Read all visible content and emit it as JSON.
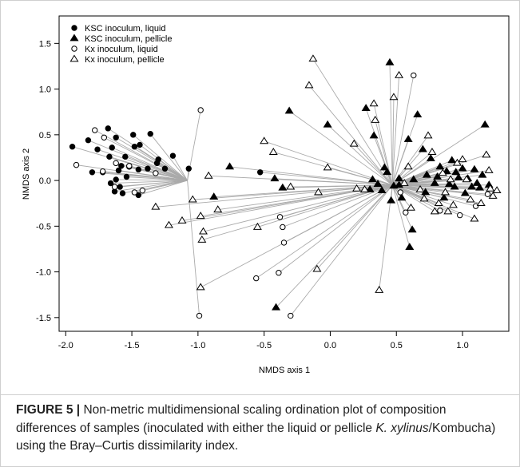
{
  "caption": {
    "label": "FIGURE 5 |",
    "text_1": "Non-metric multidimensional scaling ordination plot of composition differences of samples (inoculated with either the liquid or pellicle",
    "taxon": "K. xylinus",
    "text_2": "/Kombucha) using the Bray–Curtis dissimilarity index."
  },
  "chart_data": {
    "type": "scatter",
    "xlabel": "NMDS axis 1",
    "ylabel": "NMDS axis 2",
    "xlim": [
      -2.05,
      1.35
    ],
    "ylim": [
      -1.65,
      1.8
    ],
    "xticks": [
      -2.0,
      -1.5,
      -1.0,
      -0.5,
      0.0,
      0.5,
      1.0
    ],
    "yticks": [
      1.5,
      1.0,
      0.5,
      0.0,
      -0.5,
      -1.0,
      -1.5
    ],
    "xtick_labels": [
      "-2.0",
      "-1.5",
      "-1.0",
      "-0.5",
      "0.0",
      "0.5",
      "1.0"
    ],
    "ytick_labels": [
      "1.5",
      "1.0",
      "0.5",
      "0.0",
      "-0.5",
      "-1.0",
      "-1.5"
    ],
    "grid": false,
    "legend_position": "top-left",
    "series": [
      {
        "name": "KSC inoculum, liquid",
        "marker": "filled-circle",
        "points": [
          [
            -1.95,
            0.37
          ],
          [
            -1.83,
            0.44
          ],
          [
            -1.68,
            0.57
          ],
          [
            -1.65,
            0.36
          ],
          [
            -1.62,
            0.47
          ],
          [
            -1.55,
            0.26
          ],
          [
            -1.49,
            0.5
          ],
          [
            -1.48,
            0.37
          ],
          [
            -1.44,
            0.39
          ],
          [
            -1.36,
            0.51
          ],
          [
            -1.3,
            0.23
          ],
          [
            -1.25,
            0.13
          ],
          [
            -1.19,
            0.27
          ],
          [
            -1.76,
            0.34
          ],
          [
            -1.67,
            0.26
          ],
          [
            -1.58,
            0.16
          ],
          [
            -1.52,
            0.15
          ],
          [
            -1.45,
            0.12
          ],
          [
            -1.38,
            0.13
          ],
          [
            -1.31,
            0.19
          ],
          [
            -1.6,
            0.11
          ],
          [
            -1.72,
            0.09
          ],
          [
            -1.62,
            0.01
          ],
          [
            -1.59,
            -0.07
          ],
          [
            -1.63,
            -0.12
          ],
          [
            -1.57,
            -0.14
          ],
          [
            -1.45,
            -0.16
          ],
          [
            -1.07,
            0.13
          ],
          [
            -0.53,
            0.09
          ],
          [
            -1.8,
            0.09
          ],
          [
            -1.54,
            0.04
          ],
          [
            -1.66,
            -0.03
          ]
        ]
      },
      {
        "name": "KSC inoculum, pellicle",
        "marker": "filled-triangle",
        "points": [
          [
            -0.41,
            -1.39
          ],
          [
            -0.76,
            0.15
          ],
          [
            -0.88,
            -0.18
          ],
          [
            -0.42,
            0.02
          ],
          [
            -0.31,
            0.76
          ],
          [
            -0.36,
            -0.08
          ],
          [
            -0.02,
            0.61
          ],
          [
            0.27,
            0.79
          ],
          [
            0.32,
            0.01
          ],
          [
            0.33,
            0.49
          ],
          [
            0.36,
            -0.04
          ],
          [
            0.45,
            1.29
          ],
          [
            0.52,
            -0.05
          ],
          [
            0.54,
            -0.19
          ],
          [
            0.59,
            0.45
          ],
          [
            0.62,
            -0.54
          ],
          [
            0.63,
            0.01
          ],
          [
            0.66,
            0.72
          ],
          [
            0.7,
            0.34
          ],
          [
            0.72,
            -0.13
          ],
          [
            0.73,
            0.06
          ],
          [
            0.76,
            0.24
          ],
          [
            0.79,
            -0.03
          ],
          [
            0.81,
            0.04
          ],
          [
            0.83,
            0.15
          ],
          [
            0.86,
            -0.19
          ],
          [
            0.88,
            0.1
          ],
          [
            0.9,
            -0.04
          ],
          [
            0.92,
            0.22
          ],
          [
            0.94,
            -0.07
          ],
          [
            0.95,
            0.09
          ],
          [
            0.97,
            0.03
          ],
          [
            1.0,
            0.13
          ],
          [
            1.02,
            -0.14
          ],
          [
            1.04,
            0.02
          ],
          [
            1.07,
            -0.07
          ],
          [
            1.09,
            0.12
          ],
          [
            1.11,
            -0.03
          ],
          [
            1.13,
            -0.08
          ],
          [
            1.15,
            0.06
          ],
          [
            1.17,
            0.61
          ],
          [
            1.2,
            -0.05
          ],
          [
            0.46,
            -0.22
          ],
          [
            0.52,
            0.02
          ],
          [
            0.43,
            0.09
          ],
          [
            0.39,
            -0.11
          ],
          [
            0.6,
            -0.73
          ],
          [
            0.41,
            0.14
          ],
          [
            0.48,
            -0.06
          ],
          [
            0.3,
            -0.1
          ]
        ]
      },
      {
        "name": "Kx inoculum, liquid",
        "marker": "open-circle",
        "points": [
          [
            -1.78,
            0.55
          ],
          [
            -1.71,
            0.47
          ],
          [
            -1.92,
            0.17
          ],
          [
            -1.72,
            0.1
          ],
          [
            -1.62,
            0.19
          ],
          [
            -1.52,
            0.16
          ],
          [
            -1.48,
            -0.13
          ],
          [
            -1.32,
            0.08
          ],
          [
            -1.63,
            -0.07
          ],
          [
            -1.42,
            -0.11
          ],
          [
            -0.98,
            0.77
          ],
          [
            -0.38,
            -0.4
          ],
          [
            -0.36,
            -0.51
          ],
          [
            -0.35,
            -0.68
          ],
          [
            -0.39,
            -1.01
          ],
          [
            -0.56,
            -1.07
          ],
          [
            -0.3,
            -1.48
          ],
          [
            -0.99,
            -1.48
          ],
          [
            0.53,
            -0.13
          ],
          [
            0.57,
            -0.35
          ],
          [
            0.63,
            1.15
          ],
          [
            0.83,
            -0.33
          ],
          [
            0.98,
            -0.38
          ],
          [
            1.1,
            -0.28
          ],
          [
            1.19,
            -0.15
          ]
        ]
      },
      {
        "name": "Kx inoculum, pellicle",
        "marker": "open-triangle",
        "points": [
          [
            -1.22,
            -0.49
          ],
          [
            -1.12,
            -0.44
          ],
          [
            -1.04,
            -0.21
          ],
          [
            -0.92,
            0.05
          ],
          [
            -0.97,
            -0.65
          ],
          [
            -0.96,
            -0.56
          ],
          [
            -0.98,
            -1.17
          ],
          [
            -0.98,
            -0.39
          ],
          [
            -1.32,
            -0.29
          ],
          [
            -0.85,
            -0.32
          ],
          [
            -0.55,
            -0.51
          ],
          [
            -0.5,
            0.43
          ],
          [
            -0.43,
            0.31
          ],
          [
            -0.3,
            -0.07
          ],
          [
            -0.16,
            1.04
          ],
          [
            -0.13,
            1.33
          ],
          [
            -0.09,
            -0.13
          ],
          [
            -0.1,
            -0.97
          ],
          [
            -0.02,
            0.14
          ],
          [
            0.18,
            0.4
          ],
          [
            0.2,
            -0.09
          ],
          [
            0.26,
            -0.1
          ],
          [
            0.33,
            0.84
          ],
          [
            0.34,
            0.66
          ],
          [
            0.37,
            -1.2
          ],
          [
            0.48,
            0.91
          ],
          [
            0.52,
            1.15
          ],
          [
            0.56,
            -0.03
          ],
          [
            0.59,
            0.15
          ],
          [
            0.61,
            -0.3
          ],
          [
            0.68,
            -0.1
          ],
          [
            0.71,
            -0.2
          ],
          [
            0.74,
            0.49
          ],
          [
            0.77,
            0.31
          ],
          [
            0.79,
            -0.34
          ],
          [
            0.82,
            -0.25
          ],
          [
            0.85,
            0.08
          ],
          [
            0.87,
            -0.13
          ],
          [
            0.89,
            -0.34
          ],
          [
            0.91,
            0.01
          ],
          [
            0.93,
            -0.27
          ],
          [
            1.0,
            0.23
          ],
          [
            1.03,
            0.01
          ],
          [
            1.06,
            -0.21
          ],
          [
            1.09,
            -0.42
          ],
          [
            1.14,
            -0.25
          ],
          [
            1.18,
            0.28
          ],
          [
            1.21,
            -0.09
          ],
          [
            1.23,
            -0.17
          ],
          [
            1.26,
            -0.11
          ],
          [
            1.2,
            0.11
          ],
          [
            0.96,
            0.19
          ]
        ]
      }
    ],
    "connectors": {
      "color": "#aaaaaa",
      "hubs": [
        {
          "at": [
            -1.08,
            0.0
          ],
          "series": [
            0
          ],
          "to_series": [
            2
          ],
          "range": [
            -2.0,
            -0.9
          ]
        },
        {
          "at": [
            0.47,
            -0.05
          ],
          "series": [
            1,
            3,
            2
          ],
          "range": [
            -1.3,
            1.3
          ]
        }
      ]
    }
  }
}
